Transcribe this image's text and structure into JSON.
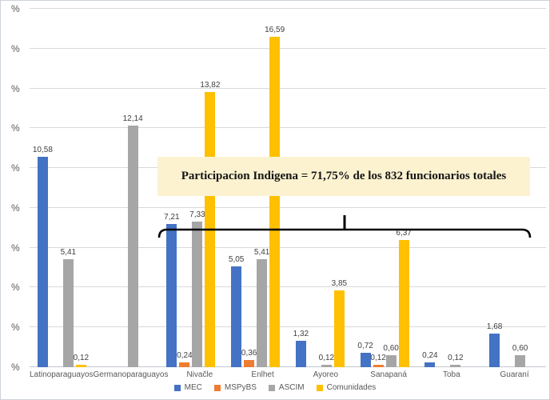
{
  "chart_data": {
    "type": "bar",
    "title": "",
    "categories": [
      "Latinoparaguayos",
      "Germanoparaguayos",
      "Nivačle",
      "Enlhet",
      "Ayoreo",
      "Sanapaná",
      "Toba",
      "Guaraní"
    ],
    "series": [
      {
        "name": "MEC",
        "color": "#4472c4",
        "values": [
          10.58,
          null,
          7.21,
          5.05,
          1.32,
          0.72,
          0.24,
          1.68
        ],
        "labels": [
          "10,58",
          null,
          "7,21",
          "5,05",
          "1,32",
          "0,72",
          "0,24",
          "1,68"
        ]
      },
      {
        "name": "MSPyBS",
        "color": "#ed7d31",
        "values": [
          null,
          null,
          0.24,
          0.36,
          null,
          0.12,
          null,
          null
        ],
        "labels": [
          null,
          null,
          "0,24",
          "0,36",
          null,
          "0,12",
          null,
          null
        ]
      },
      {
        "name": "ASCIM",
        "color": "#a6a6a6",
        "values": [
          5.41,
          12.14,
          7.33,
          5.41,
          0.12,
          0.6,
          0.12,
          0.6
        ],
        "labels": [
          "5,41",
          "12,14",
          "7,33",
          "5,41",
          "0,12",
          "0,60",
          "0,12",
          "0,60"
        ]
      },
      {
        "name": "Comunidades",
        "color": "#ffc000",
        "values": [
          0.12,
          null,
          13.82,
          16.59,
          3.85,
          6.37,
          null,
          null
        ],
        "labels": [
          "0,12",
          null,
          "13,82",
          "16,59",
          "3,85",
          "6,37",
          null,
          null
        ]
      }
    ],
    "yticks": [
      "%",
      "%",
      "%",
      "%",
      "%",
      "%",
      "%",
      "%",
      "%",
      "%"
    ],
    "ylim": [
      0,
      18
    ],
    "grid": true,
    "legend_position": "bottom",
    "annotation": "Participacion Indigena = 71,75% de los 832 funcionarios totales",
    "bracket_span": [
      "Nivačle",
      "Guaraní"
    ]
  }
}
